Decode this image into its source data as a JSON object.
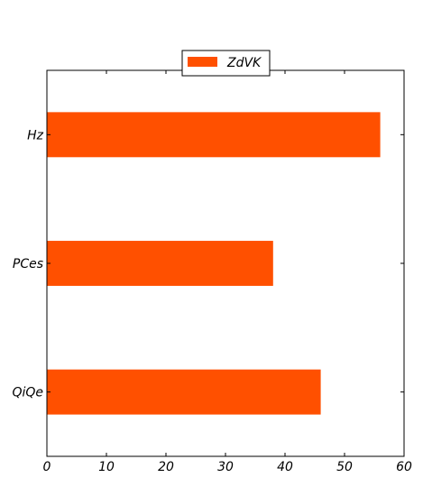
{
  "chart_data": {
    "type": "bar",
    "orientation": "horizontal",
    "categories": [
      "Hz",
      "PCes",
      "QiQe"
    ],
    "series": [
      {
        "name": "ZdVK",
        "values": [
          56,
          38,
          46
        ],
        "color": "#ff5000"
      }
    ],
    "xlim": [
      0,
      60
    ],
    "x_ticks": [
      0,
      10,
      20,
      30,
      40,
      50,
      60
    ],
    "title": "",
    "xlabel": "",
    "ylabel": "",
    "grid": false,
    "legend": "top-center"
  }
}
